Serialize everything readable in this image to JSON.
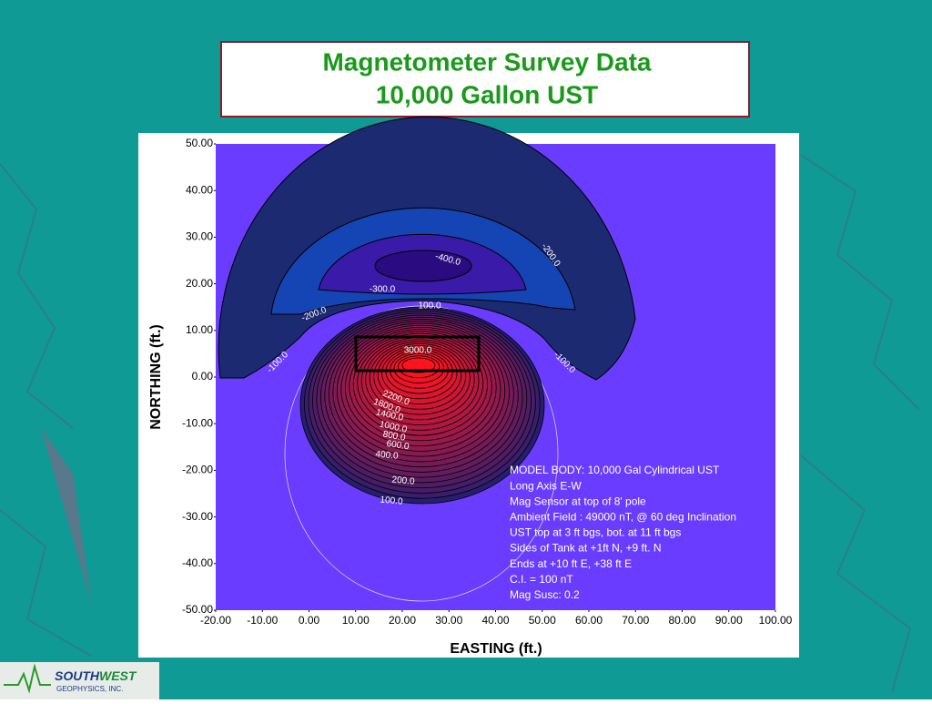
{
  "chart_data": {
    "type": "contour",
    "title": "Magnetometer Survey Data",
    "subtitle": "10,000 Gallon UST",
    "x_label": "EASTING (ft.)",
    "y_label": "NORTHING (ft.)",
    "xlim": [
      -20,
      100
    ],
    "ylim": [
      -50,
      50
    ],
    "xticks": [
      {
        "value": -20,
        "label": "-20.00"
      },
      {
        "value": -10,
        "label": "-10.00"
      },
      {
        "value": 0,
        "label": "0.00"
      },
      {
        "value": 10,
        "label": "10.00"
      },
      {
        "value": 20,
        "label": "20.00"
      },
      {
        "value": 30,
        "label": "30.00"
      },
      {
        "value": 40,
        "label": "40.00"
      },
      {
        "value": 50,
        "label": "50.00"
      },
      {
        "value": 60,
        "label": "60.00"
      },
      {
        "value": 70,
        "label": "70.00"
      },
      {
        "value": 80,
        "label": "80.00"
      },
      {
        "value": 90,
        "label": "90.00"
      },
      {
        "value": 100,
        "label": "100.00"
      }
    ],
    "yticks": [
      {
        "value": 50,
        "label": "50.00"
      },
      {
        "value": 40,
        "label": "40.00"
      },
      {
        "value": 30,
        "label": "30.00"
      },
      {
        "value": 20,
        "label": "20.00"
      },
      {
        "value": 10,
        "label": "10.00"
      },
      {
        "value": 0,
        "label": "0.00"
      },
      {
        "value": -10,
        "label": "-10.00"
      },
      {
        "value": -20,
        "label": "-20.00"
      },
      {
        "value": -30,
        "label": "-30.00"
      },
      {
        "value": -40,
        "label": "-40.00"
      },
      {
        "value": -50,
        "label": "-50.00"
      }
    ],
    "contour_labels": [
      {
        "value": -400,
        "label": "-400.0"
      },
      {
        "value": -300,
        "label": "-300.0"
      },
      {
        "value": -200,
        "label": "-200.0"
      },
      {
        "value": -200,
        "label": "-200.0"
      },
      {
        "value": -100,
        "label": "-100.0"
      },
      {
        "value": -100,
        "label": "-100.0"
      },
      {
        "value": 100,
        "label": "100.0"
      },
      {
        "value": 3000,
        "label": "3000.0"
      },
      {
        "value": 2200,
        "label": "2200.0"
      },
      {
        "value": 1800,
        "label": "1800.0"
      },
      {
        "value": 1400,
        "label": "1400.0"
      },
      {
        "value": 1000,
        "label": "1000.0"
      },
      {
        "value": 800,
        "label": "800.0"
      },
      {
        "value": 600,
        "label": "600.0"
      },
      {
        "value": 400,
        "label": "400.0"
      },
      {
        "value": 200,
        "label": "200.0"
      },
      {
        "value": 100,
        "label": "100.0"
      }
    ],
    "notes": [
      "MODEL BODY: 10,000 Gal Cylindrical UST",
      "Long Axis E-W",
      "Mag Sensor at top of 8' pole",
      "Ambient Field : 49000 nT, @ 60 deg Inclination",
      "UST top at 3 ft bgs, bot. at 11 ft bgs",
      "Sides of Tank at +1ft N, +9 ft. N",
      "Ends at +10 ft E, +38 ft E",
      "C.I. = 100 nT",
      "Mag Susc: 0.2"
    ]
  },
  "logo": {
    "name_first": "SOUTH",
    "name_second": "WEST",
    "tagline": "GEOPHYSICS, INC."
  }
}
